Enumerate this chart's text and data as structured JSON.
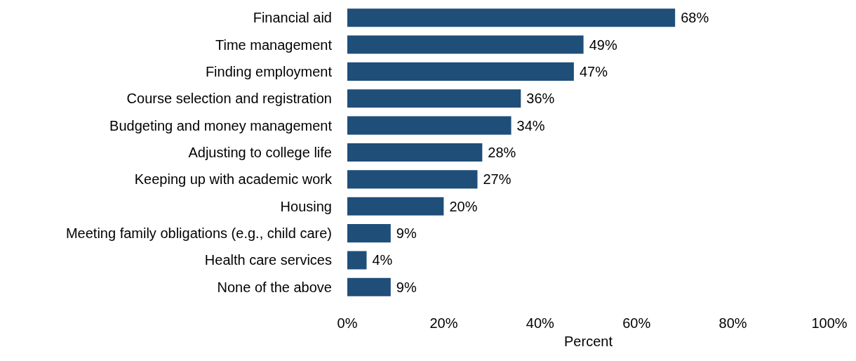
{
  "chart_data": {
    "type": "bar",
    "orientation": "horizontal",
    "xlabel": "Percent",
    "categories": [
      "Financial aid",
      "Time management",
      "Finding employment",
      "Course selection and registration",
      "Budgeting and money management",
      "Adjusting to college life",
      "Keeping up with academic work",
      "Housing",
      "Meeting family obligations (e.g., child care)",
      "Health care services",
      "None of the above"
    ],
    "values": [
      68,
      49,
      47,
      36,
      34,
      28,
      27,
      20,
      9,
      4,
      9
    ],
    "value_labels": [
      "68%",
      "49%",
      "47%",
      "36%",
      "34%",
      "28%",
      "27%",
      "20%",
      "9%",
      "4%",
      "9%"
    ],
    "color": "#1f4e79",
    "xlim": [
      0,
      100
    ],
    "xticks": [
      {
        "value": 0,
        "label": "0%"
      },
      {
        "value": 20,
        "label": "20%"
      },
      {
        "value": 40,
        "label": "40%"
      },
      {
        "value": 60,
        "label": "60%"
      },
      {
        "value": 80,
        "label": "80%"
      },
      {
        "value": 100,
        "label": "100%"
      }
    ],
    "grid": false
  }
}
